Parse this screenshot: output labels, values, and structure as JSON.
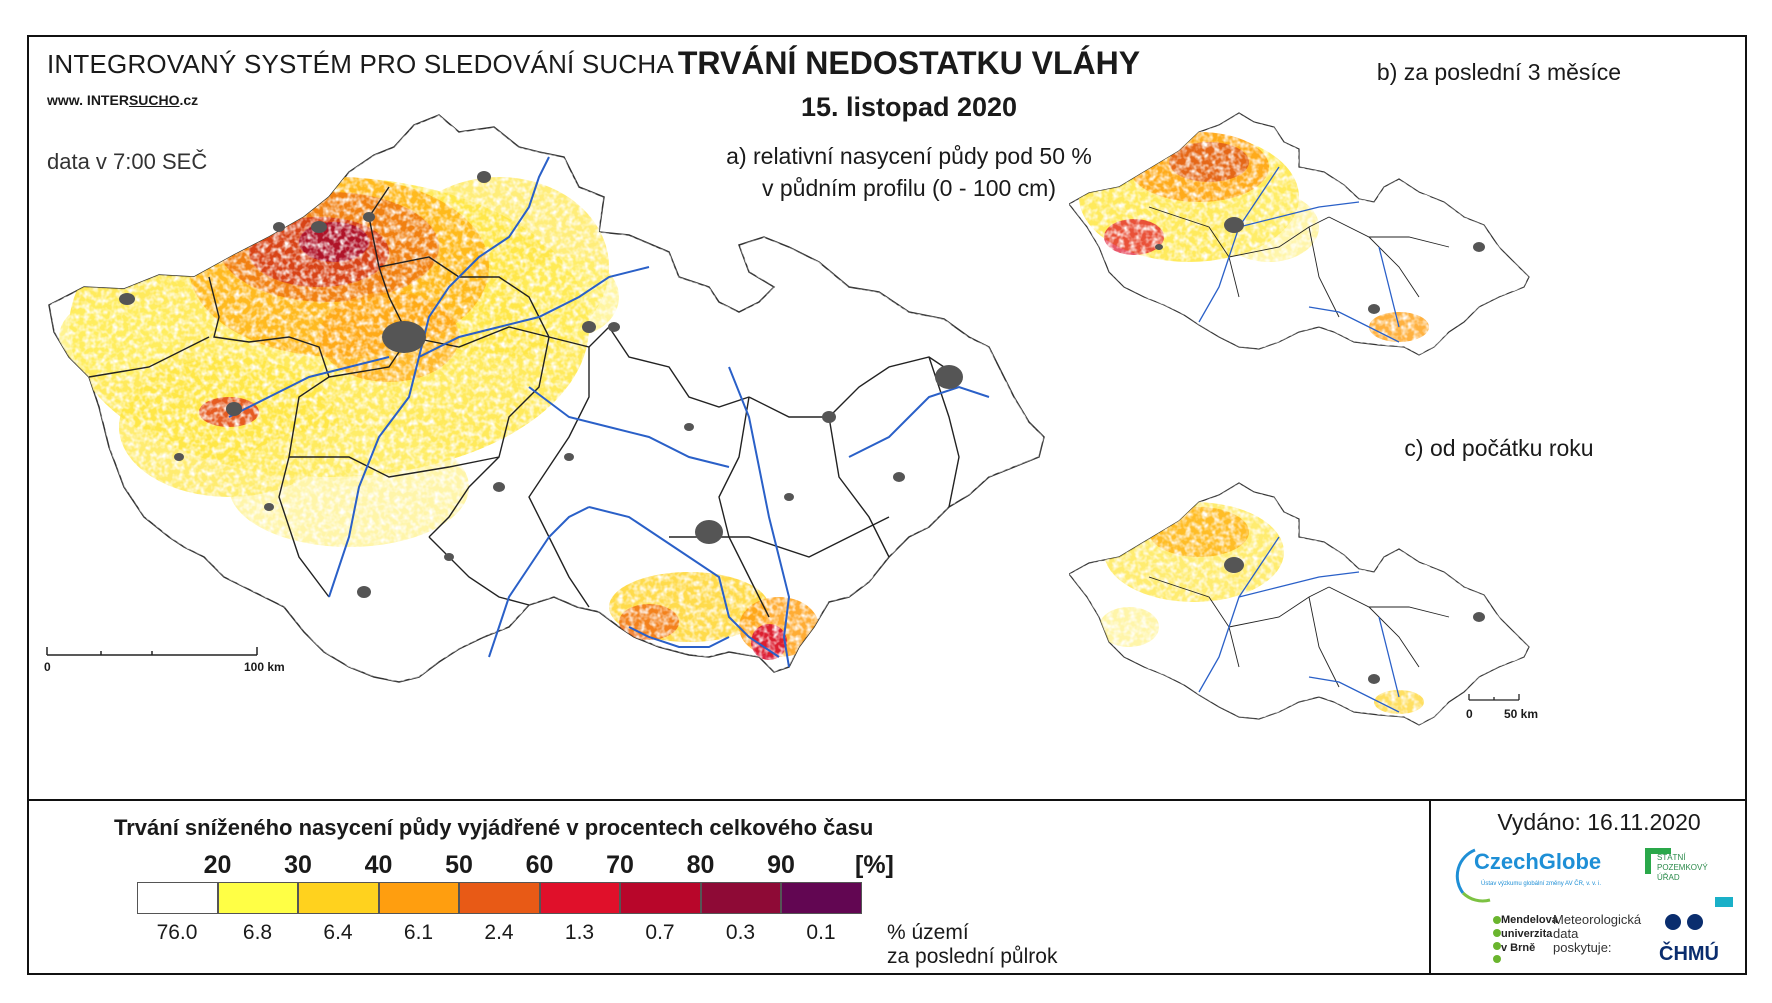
{
  "header": {
    "system": "INTEGROVANÝ SYSTÉM PRO SLEDOVÁNÍ SUCHA",
    "www_prefix": "www. INTER",
    "www_highlight": "SUCHO",
    "www_suffix": ".cz",
    "time_note": "data v 7:00 SEČ",
    "title": "TRVÁNÍ NEDOSTATKU VLÁHY",
    "date": "15. listopad 2020",
    "subtitle_line1": "a) relativní nasycení půdy pod 50 %",
    "subtitle_line2": "v půdním profilu (0 - 100 cm)"
  },
  "inset_b": {
    "title": "b) za poslední 3 měsíce"
  },
  "inset_c": {
    "title": "c) od počátku roku"
  },
  "main_scale": {
    "start": "0",
    "end": "100 km"
  },
  "inset_scale": {
    "start": "0",
    "end": "50 km"
  },
  "legend": {
    "title": "Trvání sníženého nasycení půdy vyjádřené v procentech celkového času",
    "thresholds": [
      "20",
      "30",
      "40",
      "50",
      "60",
      "70",
      "80",
      "90"
    ],
    "unit": "[%]",
    "classes": [
      {
        "color": "#ffffff",
        "share": "76.0"
      },
      {
        "color": "#ffff45",
        "share": "6.8"
      },
      {
        "color": "#ffd21e",
        "share": "6.4"
      },
      {
        "color": "#ff9e0f",
        "share": "6.1"
      },
      {
        "color": "#e85a16",
        "share": "2.4"
      },
      {
        "color": "#e0102a",
        "share": "1.3"
      },
      {
        "color": "#b8062a",
        "share": "0.7"
      },
      {
        "color": "#8e0a36",
        "share": "0.3"
      },
      {
        "color": "#620652",
        "share": "0.1"
      }
    ],
    "note_line1": "% území",
    "note_line2": "za poslední půlrok"
  },
  "issued": "Vydáno: 16.11.2020",
  "logos": {
    "czechglobe": "CzechGlobe",
    "czechglobe_sub": "Ústav výzkumu globální změny AV ČR, v. v. i.",
    "spu_line1": "STÁTNÍ",
    "spu_line2": "POZEMKOVÝ",
    "spu_line3": "ÚŘAD",
    "mendel_line1": "Mendelova",
    "mendel_line2": "univerzita",
    "mendel_line3": "v Brně",
    "met_line1": "Meteorologická",
    "met_line2": "data",
    "met_line3": "poskytuje:",
    "chmu": "ČHMÚ"
  },
  "colors": {
    "river": "#2a60c8",
    "city": "#555555",
    "border": "#222222"
  }
}
